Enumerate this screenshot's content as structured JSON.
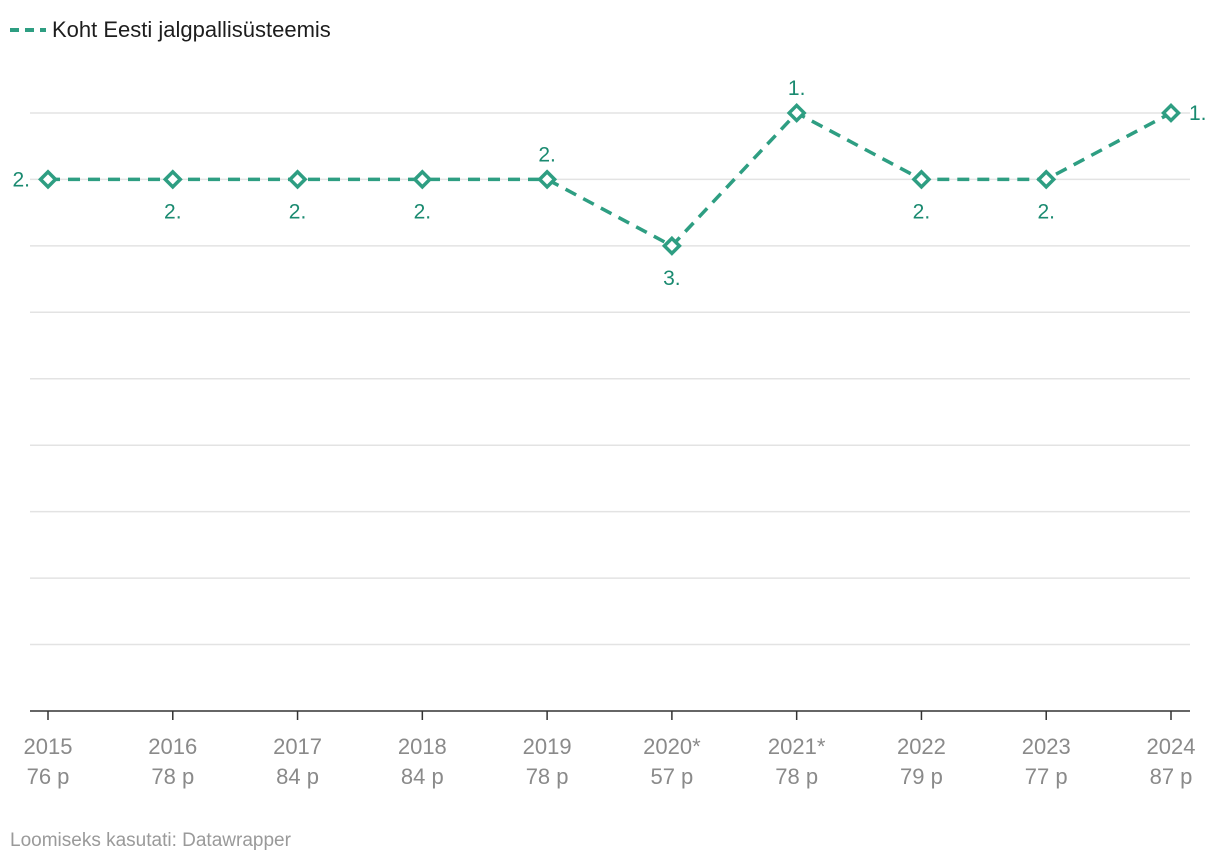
{
  "chart_data": {
    "type": "line",
    "title": "",
    "xlabel": "",
    "ylabel": "",
    "legend": {
      "label": "Koht Eesti jalgpallisüsteemis",
      "position": "top-left",
      "line_style": "dashed"
    },
    "categories": [
      "2015",
      "2016",
      "2017",
      "2018",
      "2019",
      "2020*",
      "2021*",
      "2022",
      "2023",
      "2024"
    ],
    "sublabels": [
      "76 p",
      "78 p",
      "84 p",
      "84 p",
      "78 p",
      "57 p",
      "78 p",
      "79 p",
      "77 p",
      "87 p"
    ],
    "series": [
      {
        "name": "Koht Eesti jalgpallisüsteemis",
        "values": [
          2,
          2,
          2,
          2,
          2,
          3,
          1,
          2,
          2,
          1
        ],
        "data_labels": [
          "2.",
          "2.",
          "2.",
          "2.",
          "2.",
          "3.",
          "1.",
          "2.",
          "2.",
          "1."
        ],
        "label_positions": [
          "left",
          "below",
          "below",
          "below",
          "above",
          "below",
          "above",
          "below",
          "below",
          "right"
        ],
        "color": "#2e9e82",
        "marker": "diamond"
      }
    ],
    "y_axis": {
      "reversed": true,
      "min": 0,
      "max": 10,
      "gridlines": true,
      "tick_labels": false
    },
    "grid": true
  },
  "colors": {
    "series": "#2e9e82",
    "label_text": "#1a8a70",
    "grid": "#e3e3e3",
    "axis": "#333333",
    "tick_text": "#8a8a8a",
    "footer_text": "#9a9a9a"
  },
  "footer": {
    "credit": "Loomiseks kasutati: Datawrapper"
  }
}
